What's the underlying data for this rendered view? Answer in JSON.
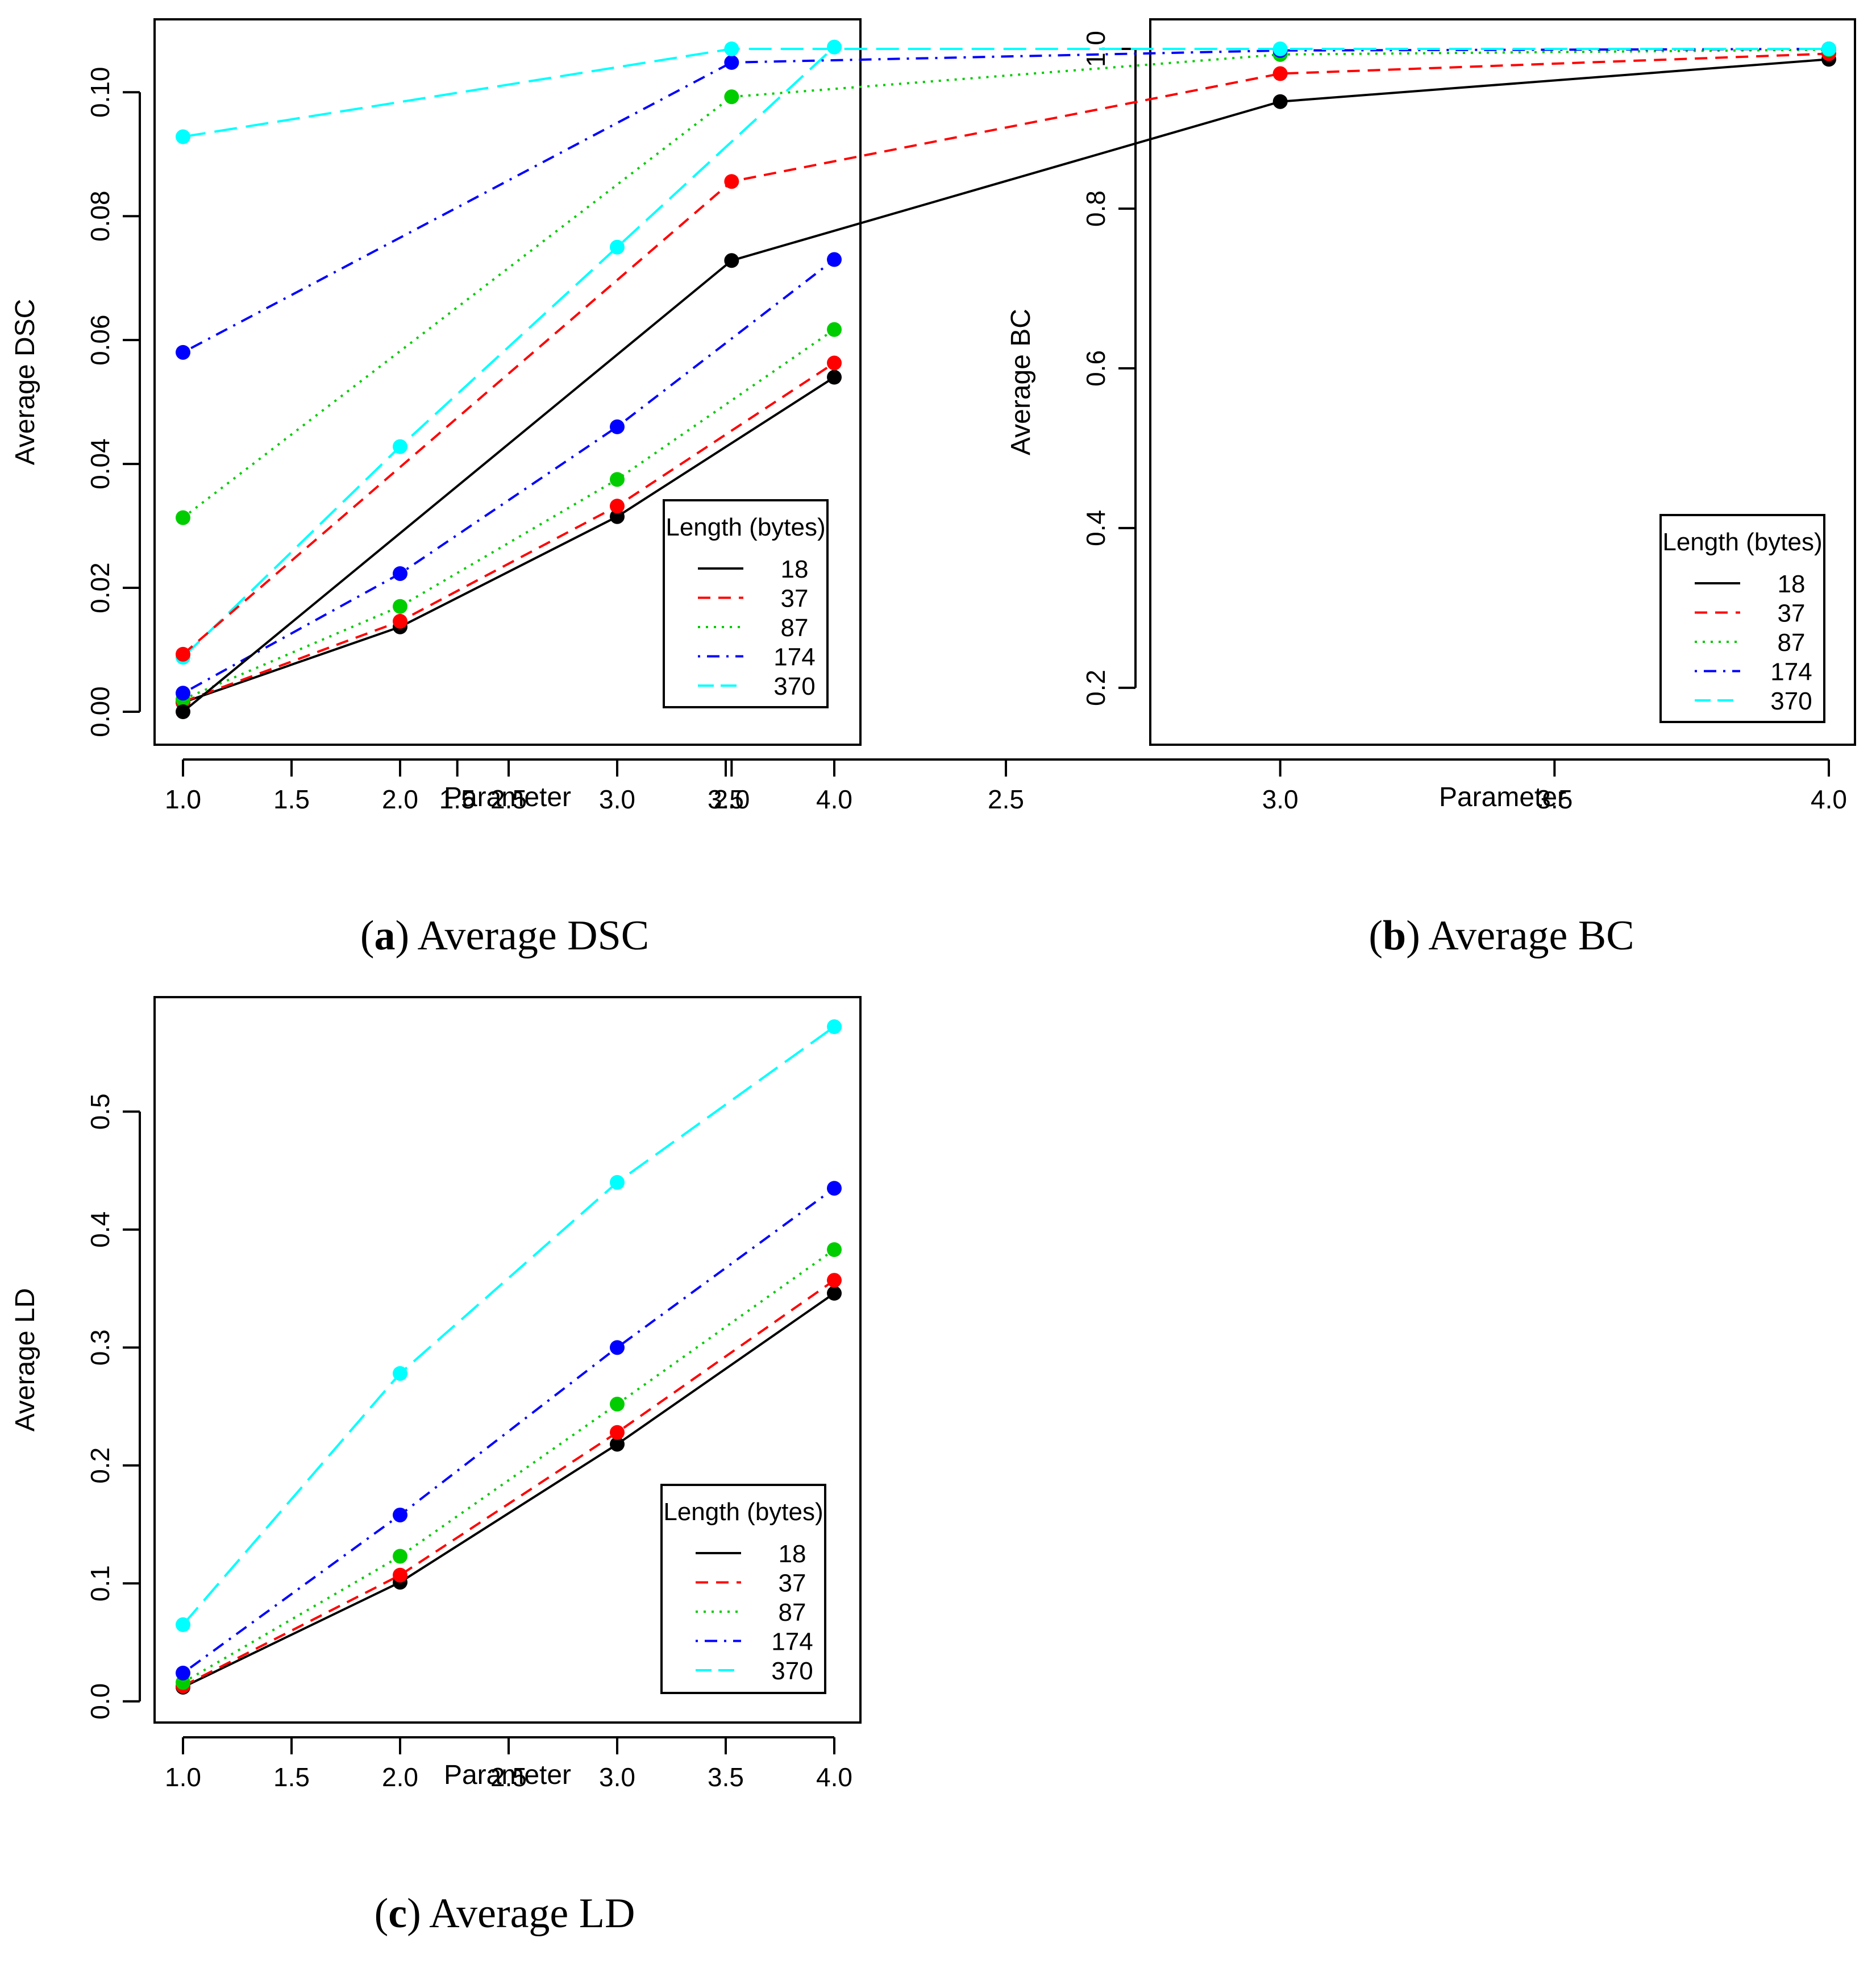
{
  "figure": {
    "captions": [
      {
        "letter": "a",
        "text": "Average DSC"
      },
      {
        "letter": "b",
        "text": "Average BC"
      },
      {
        "letter": "c",
        "text": "Average LD"
      }
    ]
  },
  "colors": {
    "18": "#000000",
    "37": "#ff0000",
    "87": "#00cd00",
    "174": "#0000ff",
    "370": "#00ffff"
  },
  "chart_data": [
    {
      "type": "line",
      "title": "",
      "xlabel": "Parameter",
      "ylabel": "Average DSC",
      "xlim": [
        1.0,
        4.0
      ],
      "ylim": [
        0.0,
        0.107
      ],
      "x_ticks": [
        "1.0",
        "1.5",
        "2.0",
        "2.5",
        "3.0",
        "3.5",
        "4.0"
      ],
      "y_ticks": [
        "0.00",
        "0.02",
        "0.04",
        "0.06",
        "0.08",
        "0.10"
      ],
      "grid": false,
      "legend": {
        "title": "Length (bytes)",
        "placement": "center-right"
      },
      "x": [
        1.0,
        2.0,
        3.0,
        4.0
      ],
      "series": [
        {
          "name": "18",
          "style": "solid",
          "values": [
            0.0015,
            0.0137,
            0.0315,
            0.054
          ]
        },
        {
          "name": "37",
          "style": "dashed",
          "values": [
            0.0016,
            0.0146,
            0.0332,
            0.0563
          ]
        },
        {
          "name": "87",
          "style": "dotted",
          "values": [
            0.002,
            0.017,
            0.0375,
            0.0617
          ]
        },
        {
          "name": "174",
          "style": "dotdash",
          "values": [
            0.003,
            0.0223,
            0.046,
            0.073
          ]
        },
        {
          "name": "370",
          "style": "longdash",
          "values": [
            0.0088,
            0.0428,
            0.075,
            0.1073
          ]
        }
      ]
    },
    {
      "type": "line",
      "title": "",
      "xlabel": "Parameter",
      "ylabel": "Average BC",
      "xlim": [
        1.0,
        4.0
      ],
      "ylim": [
        0.17,
        1.0
      ],
      "x_ticks": [
        "1.0",
        "1.5",
        "2.0",
        "2.5",
        "3.0",
        "3.5",
        "4.0"
      ],
      "y_ticks": [
        "0.2",
        "0.4",
        "0.6",
        "0.8",
        "1.0"
      ],
      "grid": false,
      "legend": {
        "title": "Length (bytes)",
        "placement": "bottom-right"
      },
      "x": [
        1.0,
        2.0,
        3.0,
        4.0
      ],
      "series": [
        {
          "name": "18",
          "style": "solid",
          "values": [
            0.17,
            0.735,
            0.934,
            0.987
          ]
        },
        {
          "name": "37",
          "style": "dashed",
          "values": [
            0.242,
            0.834,
            0.969,
            0.994
          ]
        },
        {
          "name": "87",
          "style": "dotted",
          "values": [
            0.413,
            0.94,
            0.993,
            0.999
          ]
        },
        {
          "name": "174",
          "style": "dotdash",
          "values": [
            0.62,
            0.983,
            0.998,
            1.0
          ]
        },
        {
          "name": "370",
          "style": "longdash",
          "values": [
            0.89,
            1.0,
            1.0,
            1.0
          ]
        }
      ]
    },
    {
      "type": "line",
      "title": "",
      "xlabel": "Parameter",
      "ylabel": "Average LD",
      "xlim": [
        1.0,
        4.0
      ],
      "ylim": [
        0.01,
        0.572
      ],
      "x_ticks": [
        "1.0",
        "1.5",
        "2.0",
        "2.5",
        "3.0",
        "3.5",
        "4.0"
      ],
      "y_ticks": [
        "0.0",
        "0.1",
        "0.2",
        "0.3",
        "0.4",
        "0.5"
      ],
      "grid": false,
      "legend": {
        "title": "Length (bytes)",
        "placement": "bottom-right"
      },
      "x": [
        1.0,
        2.0,
        3.0,
        4.0
      ],
      "series": [
        {
          "name": "18",
          "style": "solid",
          "values": [
            0.012,
            0.101,
            0.218,
            0.346
          ]
        },
        {
          "name": "37",
          "style": "dashed",
          "values": [
            0.013,
            0.107,
            0.228,
            0.357
          ]
        },
        {
          "name": "87",
          "style": "dotted",
          "values": [
            0.016,
            0.123,
            0.252,
            0.383
          ]
        },
        {
          "name": "174",
          "style": "dotdash",
          "values": [
            0.024,
            0.158,
            0.3,
            0.435
          ]
        },
        {
          "name": "370",
          "style": "longdash",
          "values": [
            0.065,
            0.278,
            0.44,
            0.572
          ]
        }
      ]
    }
  ]
}
